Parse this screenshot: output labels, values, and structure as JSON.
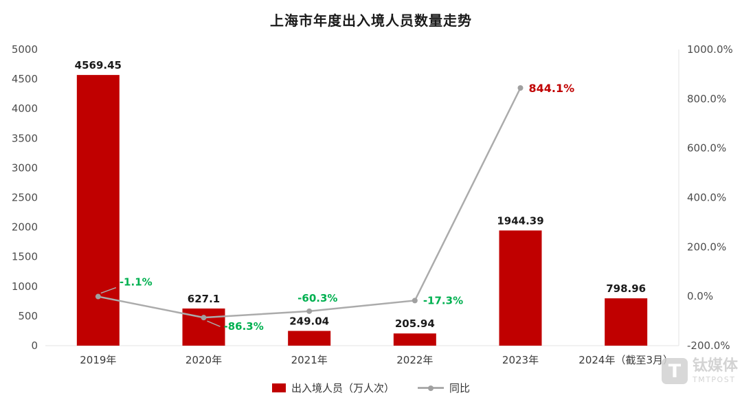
{
  "title": "上海市年度出入境人员数量走势",
  "legend": [
    {
      "label": "出入境人员（万人次）",
      "type": "bar"
    },
    {
      "label": "同比",
      "type": "line"
    }
  ],
  "watermark": {
    "logo_letter": "T",
    "brand": "钛媒体",
    "brand_sub": "TMTPOST"
  },
  "colors": {
    "bar": "#c00000",
    "line": "#ababab",
    "line_dot": "#a0a0a0",
    "negative_label": "#00b050",
    "positive_label": "#c00000",
    "axis_text": "#4d4d4d",
    "bar_label": "#1a1a1a"
  },
  "chart_data": {
    "type": "bar+line",
    "title": "上海市年度出入境人员数量走势",
    "categories": [
      "2019年",
      "2020年",
      "2021年",
      "2022年",
      "2023年",
      "2024年（截至3月）"
    ],
    "series": [
      {
        "name": "出入境人员（万人次）",
        "chart": "bar",
        "axis": "left",
        "values": [
          4569.45,
          627.1,
          249.04,
          205.94,
          1944.39,
          798.96
        ],
        "labels": [
          "4569.45",
          "627.1",
          "249.04",
          "205.94",
          "1944.39",
          "798.96"
        ]
      },
      {
        "name": "同比",
        "chart": "line",
        "axis": "right",
        "unit": "%",
        "values": [
          -1.1,
          -86.3,
          -60.3,
          -17.3,
          844.1,
          null
        ],
        "labels": [
          "-1.1%",
          "-86.3%",
          "-60.3%",
          "-17.3%",
          "844.1%",
          null
        ]
      }
    ],
    "left_axis": {
      "min": 0,
      "max": 5000,
      "step": 500,
      "ticks": [
        "0",
        "500",
        "1000",
        "1500",
        "2000",
        "2500",
        "3000",
        "3500",
        "4000",
        "4500",
        "5000"
      ]
    },
    "right_axis": {
      "min": -200,
      "max": 1000,
      "step": 200,
      "ticks": [
        "-200.0%",
        "0.0%",
        "200.0%",
        "400.0%",
        "600.0%",
        "800.0%",
        "1000.0%"
      ]
    },
    "grid": false,
    "legend_position": "bottom"
  }
}
